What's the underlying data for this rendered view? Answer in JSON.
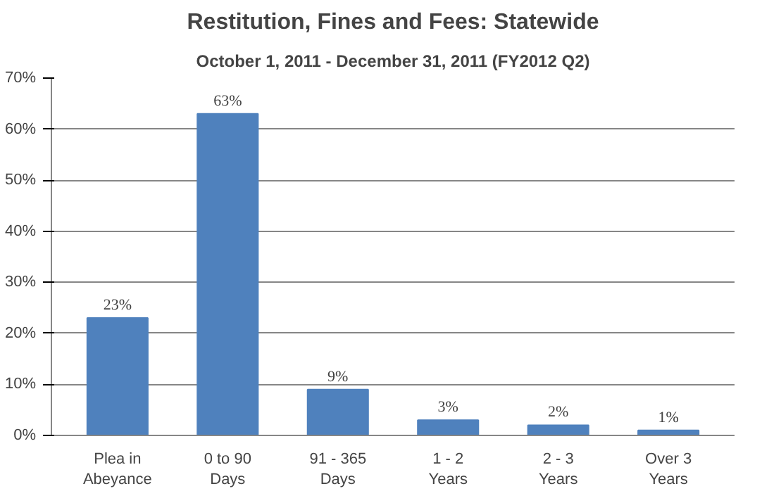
{
  "chart_data": {
    "type": "bar",
    "title": "Restitution, Fines and Fees: Statewide",
    "subtitle": "October 1, 2011 - December 31, 2011 (FY2012 Q2)",
    "categories": [
      "Plea in Abeyance",
      "0 to 90 Days",
      "91 - 365 Days",
      "1 - 2 Years",
      "2 - 3 Years",
      "Over 3 Years"
    ],
    "values": [
      23,
      63,
      9,
      3,
      2,
      1
    ],
    "value_labels": [
      "23%",
      "63%",
      "9%",
      "3%",
      "2%",
      "1%"
    ],
    "color": "#4f81bd",
    "ylim": [
      0,
      70
    ],
    "yticks": [
      {
        "value": 0,
        "label": "0%"
      },
      {
        "value": 10,
        "label": "10%"
      },
      {
        "value": 20,
        "label": "20%"
      },
      {
        "value": 30,
        "label": "30%"
      },
      {
        "value": 40,
        "label": "40%"
      },
      {
        "value": 50,
        "label": "50%"
      },
      {
        "value": 60,
        "label": "60%"
      },
      {
        "value": 70,
        "label": "70%"
      }
    ],
    "grid": "y"
  }
}
